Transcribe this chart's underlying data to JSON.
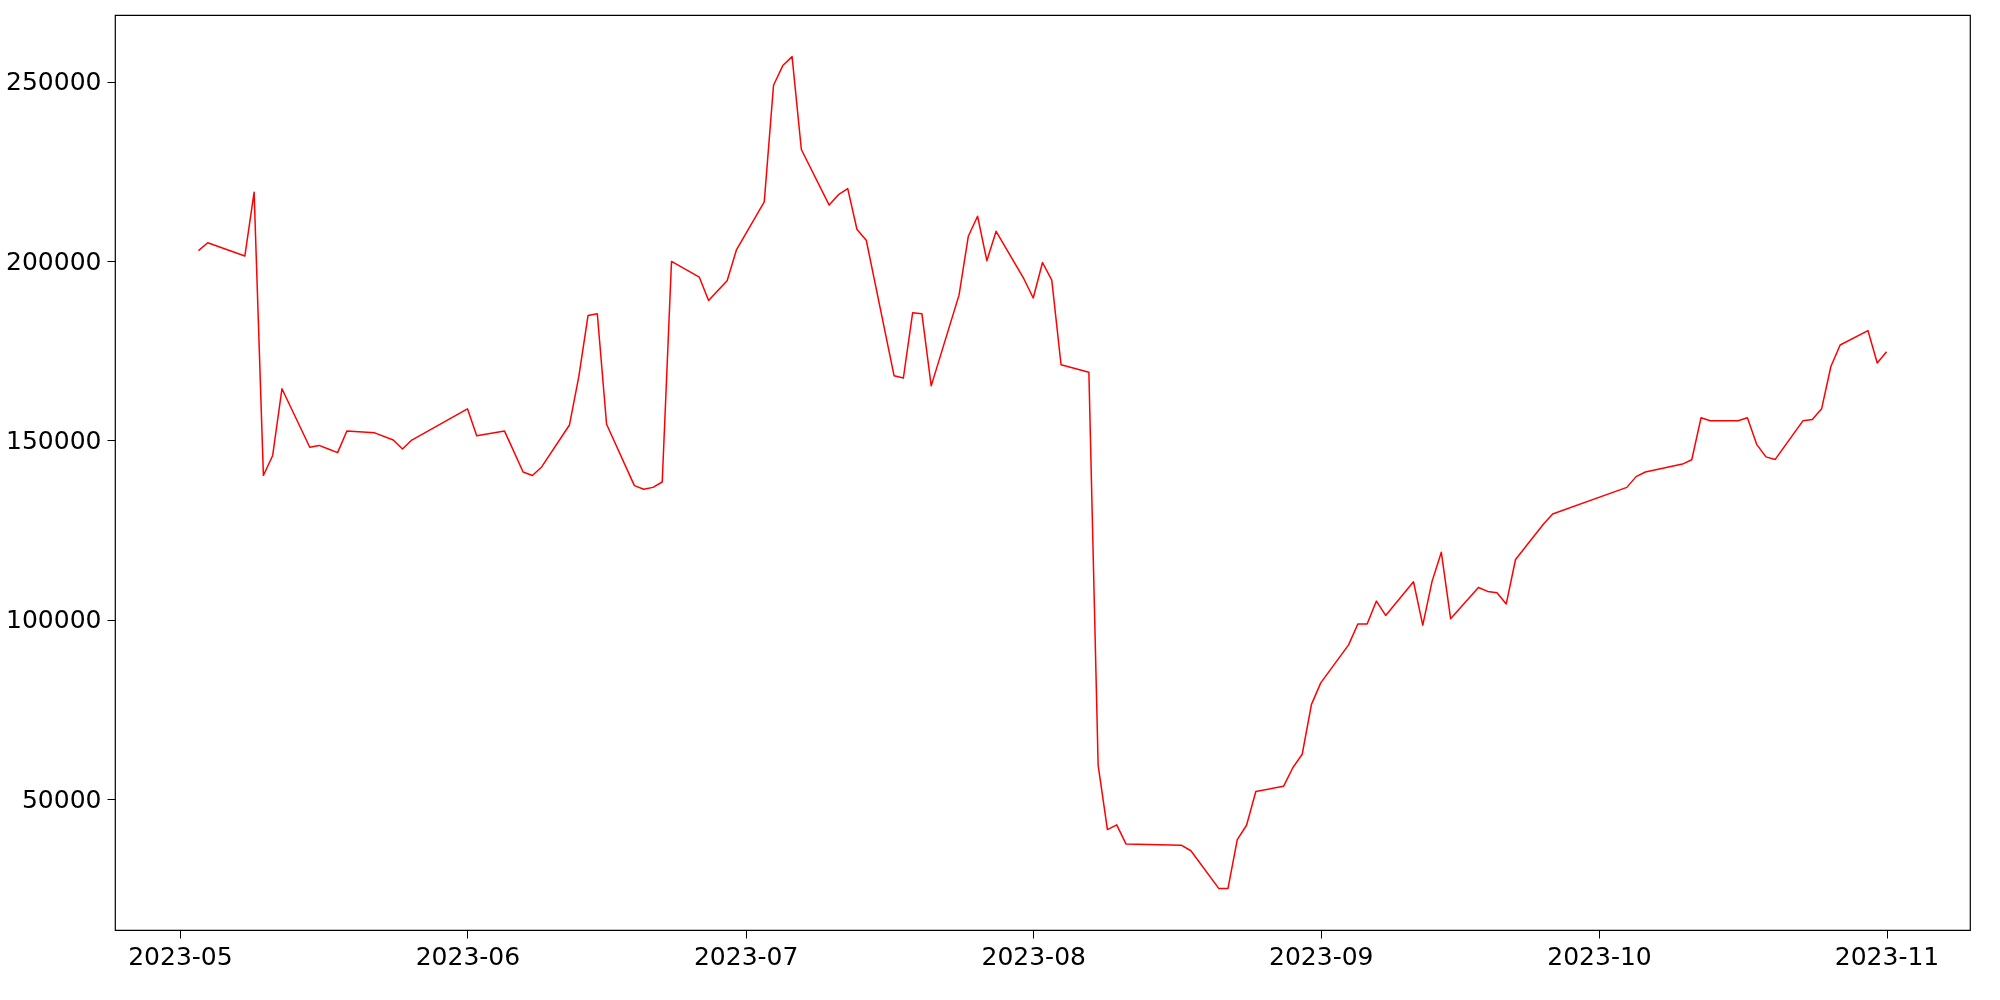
{
  "chart_data": {
    "type": "line",
    "x": [
      "2023-05-03",
      "2023-05-04",
      "2023-05-08",
      "2023-05-09",
      "2023-05-10",
      "2023-05-11",
      "2023-05-12",
      "2023-05-15",
      "2023-05-16",
      "2023-05-17",
      "2023-05-18",
      "2023-05-19",
      "2023-05-22",
      "2023-05-24",
      "2023-05-25",
      "2023-05-26",
      "2023-06-01",
      "2023-06-02",
      "2023-06-05",
      "2023-06-07",
      "2023-06-08",
      "2023-06-09",
      "2023-06-12",
      "2023-06-13",
      "2023-06-14",
      "2023-06-15",
      "2023-06-16",
      "2023-06-19",
      "2023-06-20",
      "2023-06-21",
      "2023-06-22",
      "2023-06-23",
      "2023-06-26",
      "2023-06-27",
      "2023-06-28",
      "2023-06-29",
      "2023-06-30",
      "2023-07-03",
      "2023-07-04",
      "2023-07-05",
      "2023-07-06",
      "2023-07-07",
      "2023-07-10",
      "2023-07-11",
      "2023-07-12",
      "2023-07-13",
      "2023-07-14",
      "2023-07-17",
      "2023-07-18",
      "2023-07-19",
      "2023-07-20",
      "2023-07-21",
      "2023-07-24",
      "2023-07-25",
      "2023-07-26",
      "2023-07-27",
      "2023-07-28",
      "2023-07-31",
      "2023-08-01",
      "2023-08-02",
      "2023-08-03",
      "2023-08-04",
      "2023-08-07",
      "2023-08-08",
      "2023-08-09",
      "2023-08-10",
      "2023-08-11",
      "2023-08-17",
      "2023-08-18",
      "2023-08-21",
      "2023-08-22",
      "2023-08-23",
      "2023-08-24",
      "2023-08-25",
      "2023-08-28",
      "2023-08-29",
      "2023-08-30",
      "2023-08-31",
      "2023-09-01",
      "2023-09-04",
      "2023-09-05",
      "2023-09-06",
      "2023-09-07",
      "2023-09-08",
      "2023-09-11",
      "2023-09-12",
      "2023-09-13",
      "2023-09-14",
      "2023-09-15",
      "2023-09-18",
      "2023-09-19",
      "2023-09-20",
      "2023-09-21",
      "2023-09-22",
      "2023-09-25",
      "2023-09-26",
      "2023-10-04",
      "2023-10-05",
      "2023-10-06",
      "2023-10-10",
      "2023-10-11",
      "2023-10-12",
      "2023-10-13",
      "2023-10-16",
      "2023-10-17",
      "2023-10-18",
      "2023-10-19",
      "2023-10-20",
      "2023-10-23",
      "2023-10-24",
      "2023-10-25",
      "2023-10-26",
      "2023-10-27",
      "2023-10-30",
      "2023-10-31",
      "2023-11-01"
    ],
    "series": [
      {
        "color": "#ff0000",
        "values": [
          202900,
          205100,
          201400,
          219200,
          140200,
          145800,
          164400,
          148100,
          148600,
          147600,
          146600,
          152600,
          152100,
          150100,
          147600,
          150100,
          158800,
          151300,
          152600,
          141200,
          140200,
          142600,
          154300,
          167700,
          184800,
          185300,
          154500,
          137400,
          136400,
          136900,
          138400,
          199900,
          195500,
          189000,
          191800,
          194500,
          203100,
          216500,
          249000,
          254500,
          257000,
          231100,
          215600,
          218500,
          220200,
          208800,
          205800,
          168000,
          167400,
          185600,
          185300,
          165200,
          190500,
          206900,
          212500,
          200100,
          208300,
          195000,
          189700,
          199600,
          194700,
          171100,
          169000,
          59400,
          41500,
          42800,
          37500,
          37100,
          35600,
          25100,
          25100,
          38700,
          42700,
          52100,
          53600,
          58800,
          62500,
          76400,
          82400,
          93000,
          98800,
          98800,
          105200,
          101200,
          110600,
          98500,
          110700,
          118800,
          100300,
          109000,
          107900,
          107500,
          104400,
          116800,
          126600,
          129500,
          136900,
          139900,
          141200,
          143400,
          144600,
          156300,
          155500,
          155500,
          156300,
          148900,
          145400,
          144700,
          155500,
          155800,
          158800,
          170600,
          176600,
          180600,
          171600,
          174700
        ]
      }
    ],
    "xlim": [
      "2023-04-24",
      "2023-11-10"
    ],
    "xticks": [
      {
        "value": "2023-05-01",
        "label": "2023-05"
      },
      {
        "value": "2023-06-01",
        "label": "2023-06"
      },
      {
        "value": "2023-07-01",
        "label": "2023-07"
      },
      {
        "value": "2023-08-01",
        "label": "2023-08"
      },
      {
        "value": "2023-09-01",
        "label": "2023-09"
      },
      {
        "value": "2023-10-01",
        "label": "2023-10"
      },
      {
        "value": "2023-11-01",
        "label": "2023-11"
      }
    ],
    "ylim": [
      13500,
      268600
    ],
    "yticks": [
      50000,
      100000,
      150000,
      200000,
      250000
    ],
    "grid": false,
    "marker": "none",
    "line_style": "solid"
  }
}
